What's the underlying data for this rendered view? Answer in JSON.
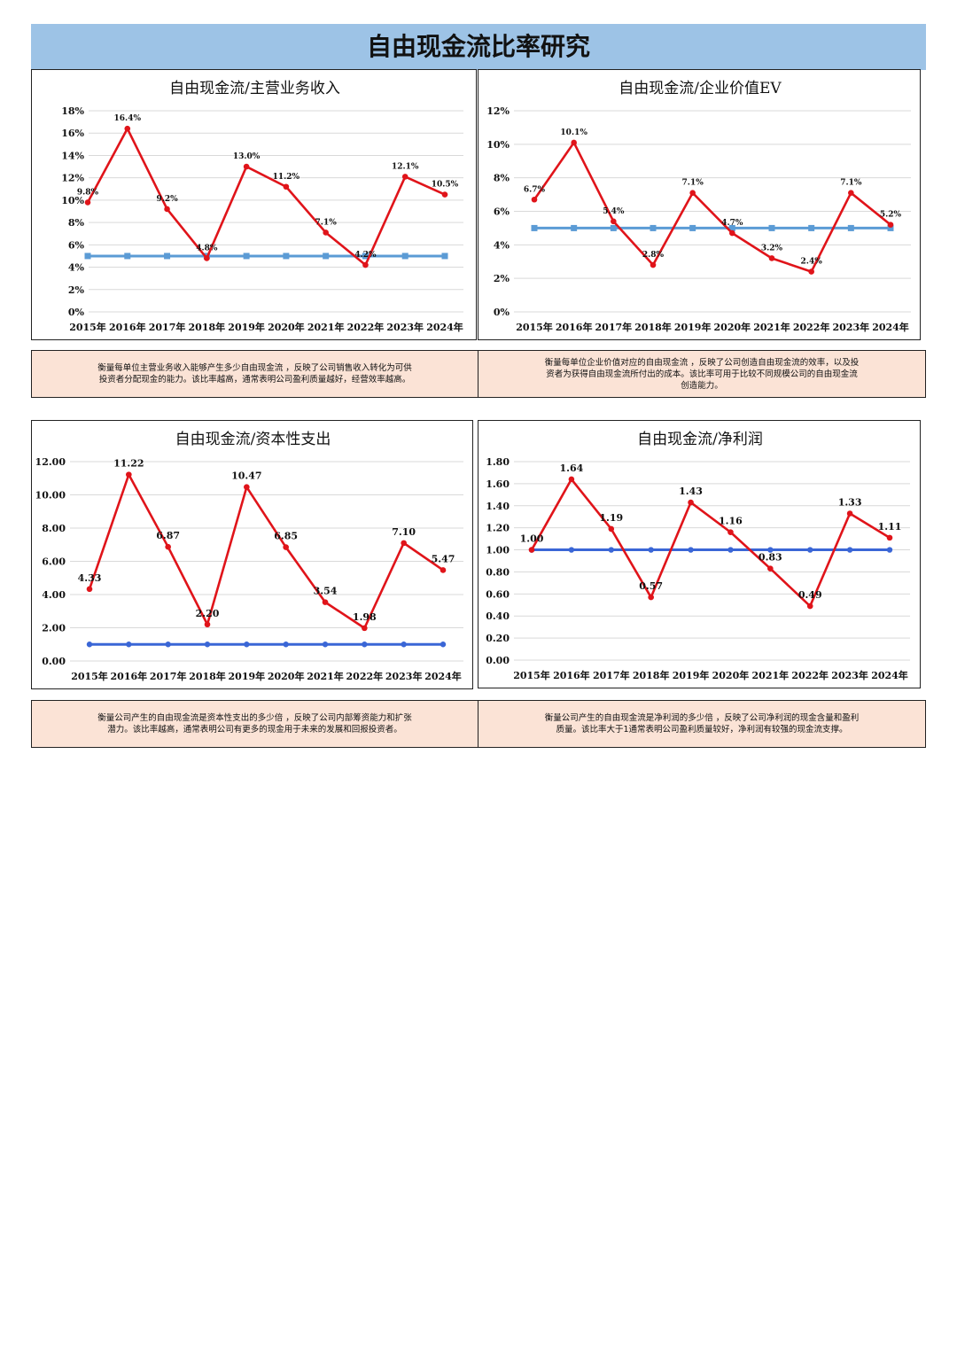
{
  "page_title": "自由现金流比率研究",
  "colors": {
    "banner": "#9dc3e6",
    "series_red": "#e0141a",
    "benchmark_light_blue": "#5b9bd5",
    "benchmark_blue": "#3a66d6",
    "note_bg": "#fbe3d6"
  },
  "chart_data": [
    {
      "type": "line",
      "title": "自由现金流/主营业务收入",
      "categories": [
        "2015年",
        "2016年",
        "2017年",
        "2018年",
        "2019年",
        "2020年",
        "2021年",
        "2022年",
        "2023年",
        "2024年"
      ],
      "series": [
        {
          "name": "自由现金流/主营业务收入",
          "values": [
            9.8,
            16.4,
            9.2,
            4.8,
            13.0,
            11.2,
            7.1,
            4.2,
            12.1,
            10.5
          ]
        },
        {
          "name": "基准线",
          "values": [
            5,
            5,
            5,
            5,
            5,
            5,
            5,
            5,
            5,
            5
          ]
        }
      ],
      "data_labels": [
        "9.8%",
        "16.4%",
        "9.2%",
        "4.8%",
        "13.0%",
        "11.2%",
        "7.1%",
        "4.2%",
        "12.1%",
        "10.5%"
      ],
      "yticks": [
        "0%",
        "2%",
        "4%",
        "6%",
        "8%",
        "10%",
        "12%",
        "14%",
        "16%",
        "18%"
      ],
      "ylim": [
        0,
        18
      ]
    },
    {
      "type": "line",
      "title": "自由现金流/企业价值EV",
      "categories": [
        "2015年",
        "2016年",
        "2017年",
        "2018年",
        "2019年",
        "2020年",
        "2021年",
        "2022年",
        "2023年",
        "2024年"
      ],
      "series": [
        {
          "name": "自由现金流/企业价值EV",
          "values": [
            6.7,
            10.1,
            5.4,
            2.8,
            7.1,
            4.7,
            3.2,
            2.4,
            7.1,
            5.2
          ]
        },
        {
          "name": "基准线",
          "values": [
            5,
            5,
            5,
            5,
            5,
            5,
            5,
            5,
            5,
            5
          ]
        }
      ],
      "data_labels": [
        "6.7%",
        "10.1%",
        "5.4%",
        "2.8%",
        "7.1%",
        "4.7%",
        "3.2%",
        "2.4%",
        "7.1%",
        "5.2%"
      ],
      "yticks": [
        "0%",
        "2%",
        "4%",
        "6%",
        "8%",
        "10%",
        "12%"
      ],
      "ylim": [
        0,
        12
      ]
    },
    {
      "type": "line",
      "title": "自由现金流/资本性支出",
      "categories": [
        "2015年",
        "2016年",
        "2017年",
        "2018年",
        "2019年",
        "2020年",
        "2021年",
        "2022年",
        "2023年",
        "2024年"
      ],
      "series": [
        {
          "name": "自由现金流/资本性支出",
          "values": [
            4.33,
            11.22,
            6.87,
            2.2,
            10.47,
            6.85,
            3.54,
            1.98,
            7.1,
            5.47
          ]
        },
        {
          "name": "基准线",
          "values": [
            1,
            1,
            1,
            1,
            1,
            1,
            1,
            1,
            1,
            1
          ]
        }
      ],
      "data_labels": [
        "4.33",
        "11.22",
        "6.87",
        "2.20",
        "10.47",
        "6.85",
        "3.54",
        "1.98",
        "7.10",
        "5.47"
      ],
      "yticks": [
        "0.00",
        "2.00",
        "4.00",
        "6.00",
        "8.00",
        "10.00",
        "12.00"
      ],
      "ylim": [
        0,
        12
      ]
    },
    {
      "type": "line",
      "title": "自由现金流/净利润",
      "categories": [
        "2015年",
        "2016年",
        "2017年",
        "2018年",
        "2019年",
        "2020年",
        "2021年",
        "2022年",
        "2023年",
        "2024年"
      ],
      "series": [
        {
          "name": "自由现金流/净利润",
          "values": [
            1.0,
            1.64,
            1.19,
            0.57,
            1.43,
            1.16,
            0.83,
            0.49,
            1.33,
            1.11
          ]
        },
        {
          "name": "基准线",
          "values": [
            1,
            1,
            1,
            1,
            1,
            1,
            1,
            1,
            1,
            1
          ]
        }
      ],
      "data_labels": [
        "1.00",
        "1.64",
        "1.19",
        "0.57",
        "1.43",
        "1.16",
        "0.83",
        "0.49",
        "1.33",
        "1.11"
      ],
      "yticks": [
        "0.00",
        "0.20",
        "0.40",
        "0.60",
        "0.80",
        "1.00",
        "1.20",
        "1.40",
        "1.60",
        "1.80"
      ],
      "ylim": [
        0,
        1.8
      ]
    }
  ],
  "notes": [
    "衡量每单位主营业务收入能够产生多少自由现金流 ，反映了公司销售收入转化为可供投资者分配现金的能力。该比率越高，通常表明公司盈利质量越好，经营效率越高。",
    "衡量每单位企业价值对应的自由现金流 ，反映了公司创造自由现金流的效率，以及投资者为获得自由现金流所付出的成本。该比率可用于比较不同规模公司的自由现金流创造能力。",
    "衡量公司产生的自由现金流是资本性支出的多少倍 ，反映了公司内部筹资能力和扩张潜力。该比率越高，通常表明公司有更多的现金用于未来的发展和回报投资者。",
    "衡量公司产生的自由现金流是净利润的多少倍 ，反映了公司净利润的现金含量和盈利质量。该比率大于1通常表明公司盈利质量较好，净利润有较强的现金流支撑。"
  ]
}
